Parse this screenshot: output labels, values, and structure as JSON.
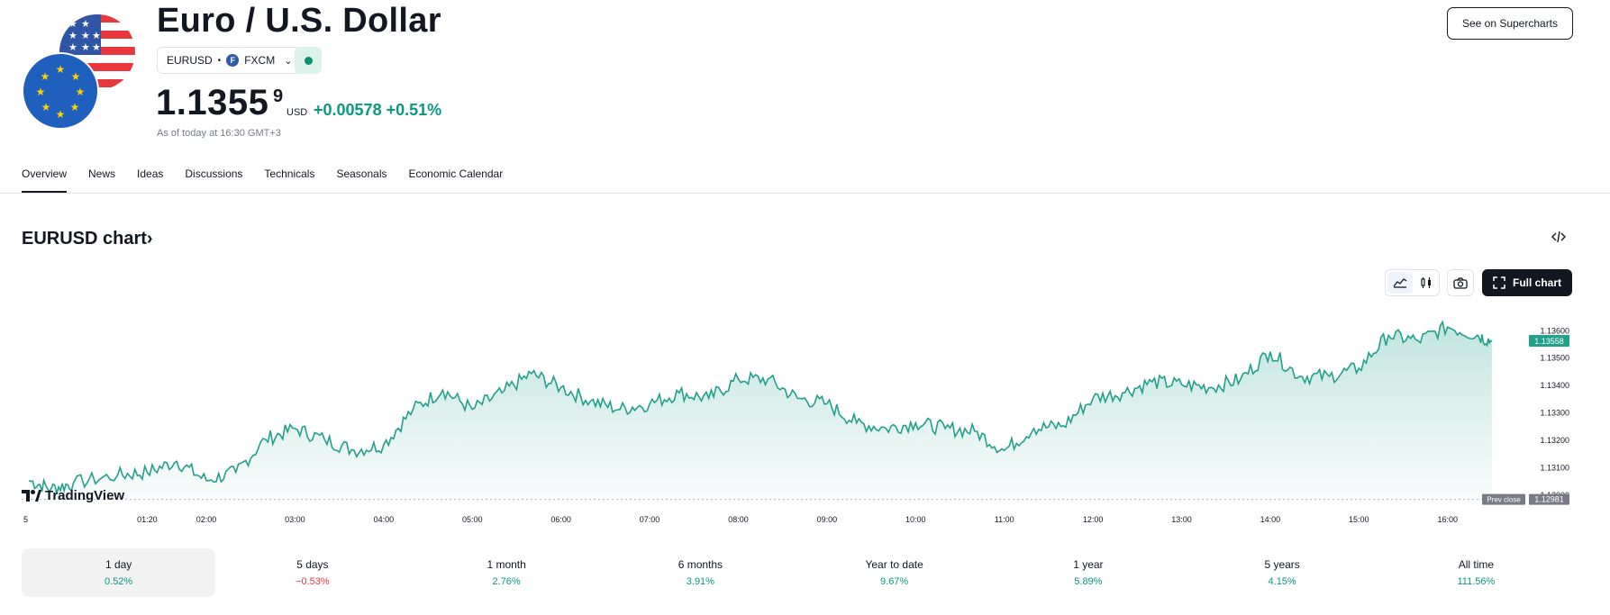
{
  "header": {
    "title": "Euro / U.S. Dollar",
    "symbol": "EURUSD",
    "exchange_logo": "F",
    "exchange": "FXCM",
    "price_main": "1.1355",
    "price_sup": "9",
    "currency": "USD",
    "change": "+0.00578",
    "change_pct": "+0.51%",
    "as_of": "As of today at 16:30 GMT+3",
    "supercharts_button": "See on Supercharts"
  },
  "tabs": [
    "Overview",
    "News",
    "Ideas",
    "Discussions",
    "Technicals",
    "Seasonals",
    "Economic Calendar"
  ],
  "chart": {
    "title": "EURUSD chart›",
    "full_chart_button": "Full chart",
    "brand": "TradingView",
    "embed_icon": "code-icon",
    "camera_icon": "camera-icon"
  },
  "chart_data": {
    "type": "area",
    "x_ticks": [
      "5",
      "01:20",
      "02:00",
      "03:00",
      "04:00",
      "05:00",
      "06:00",
      "07:00",
      "08:00",
      "09:00",
      "10:00",
      "11:00",
      "12:00",
      "13:00",
      "14:00",
      "15:00",
      "16:00"
    ],
    "y_ticks": [
      "1.13600",
      "1.13500",
      "1.13400",
      "1.13300",
      "1.13200",
      "1.13100",
      "1.13000"
    ],
    "ylim": [
      1.1297,
      1.1366
    ],
    "last_price": "1.13558",
    "prev_close": "1.12981",
    "prev_close_label": "Prev close",
    "line_color": "#22a08c",
    "series": [
      {
        "time": "00:00",
        "value": 1.1305
      },
      {
        "time": "00:15",
        "value": 1.1302
      },
      {
        "time": "00:30",
        "value": 1.1304
      },
      {
        "time": "01:00",
        "value": 1.1307
      },
      {
        "time": "01:20",
        "value": 1.1308
      },
      {
        "time": "01:40",
        "value": 1.1312
      },
      {
        "time": "02:00",
        "value": 1.1305
      },
      {
        "time": "02:20",
        "value": 1.1308
      },
      {
        "time": "02:40",
        "value": 1.132
      },
      {
        "time": "03:00",
        "value": 1.1324
      },
      {
        "time": "03:20",
        "value": 1.132
      },
      {
        "time": "03:40",
        "value": 1.1316
      },
      {
        "time": "04:00",
        "value": 1.1318
      },
      {
        "time": "04:20",
        "value": 1.1331
      },
      {
        "time": "04:40",
        "value": 1.1338
      },
      {
        "time": "05:00",
        "value": 1.1331
      },
      {
        "time": "05:20",
        "value": 1.1337
      },
      {
        "time": "05:40",
        "value": 1.1344
      },
      {
        "time": "06:00",
        "value": 1.1339
      },
      {
        "time": "06:20",
        "value": 1.1334
      },
      {
        "time": "06:40",
        "value": 1.1331
      },
      {
        "time": "07:00",
        "value": 1.1333
      },
      {
        "time": "07:20",
        "value": 1.1337
      },
      {
        "time": "07:40",
        "value": 1.1335
      },
      {
        "time": "08:00",
        "value": 1.1342
      },
      {
        "time": "08:20",
        "value": 1.1342
      },
      {
        "time": "08:40",
        "value": 1.1335
      },
      {
        "time": "09:00",
        "value": 1.1333
      },
      {
        "time": "09:20",
        "value": 1.1326
      },
      {
        "time": "09:40",
        "value": 1.1324
      },
      {
        "time": "10:00",
        "value": 1.1326
      },
      {
        "time": "10:20",
        "value": 1.1324
      },
      {
        "time": "10:40",
        "value": 1.1323
      },
      {
        "time": "11:00",
        "value": 1.1316
      },
      {
        "time": "11:20",
        "value": 1.1324
      },
      {
        "time": "11:40",
        "value": 1.1325
      },
      {
        "time": "12:00",
        "value": 1.1335
      },
      {
        "time": "12:20",
        "value": 1.1337
      },
      {
        "time": "12:40",
        "value": 1.1341
      },
      {
        "time": "13:00",
        "value": 1.134
      },
      {
        "time": "13:20",
        "value": 1.1339
      },
      {
        "time": "13:40",
        "value": 1.1342
      },
      {
        "time": "14:00",
        "value": 1.1352
      },
      {
        "time": "14:20",
        "value": 1.1343
      },
      {
        "time": "14:40",
        "value": 1.1343
      },
      {
        "time": "15:00",
        "value": 1.1346
      },
      {
        "time": "15:20",
        "value": 1.1358
      },
      {
        "time": "15:40",
        "value": 1.1356
      },
      {
        "time": "16:00",
        "value": 1.1361
      },
      {
        "time": "16:20",
        "value": 1.1358
      },
      {
        "time": "16:30",
        "value": 1.13558
      }
    ]
  },
  "periods": [
    {
      "label": "1 day",
      "value": "0.52%",
      "color": "#089981"
    },
    {
      "label": "5 days",
      "value": "−0.53%",
      "color": "#f23645"
    },
    {
      "label": "1 month",
      "value": "2.76%",
      "color": "#089981"
    },
    {
      "label": "6 months",
      "value": "3.91%",
      "color": "#089981"
    },
    {
      "label": "Year to date",
      "value": "9.67%",
      "color": "#089981"
    },
    {
      "label": "1 year",
      "value": "5.89%",
      "color": "#089981"
    },
    {
      "label": "5 years",
      "value": "4.15%",
      "color": "#089981"
    },
    {
      "label": "All time",
      "value": "111.56%",
      "color": "#089981"
    }
  ]
}
